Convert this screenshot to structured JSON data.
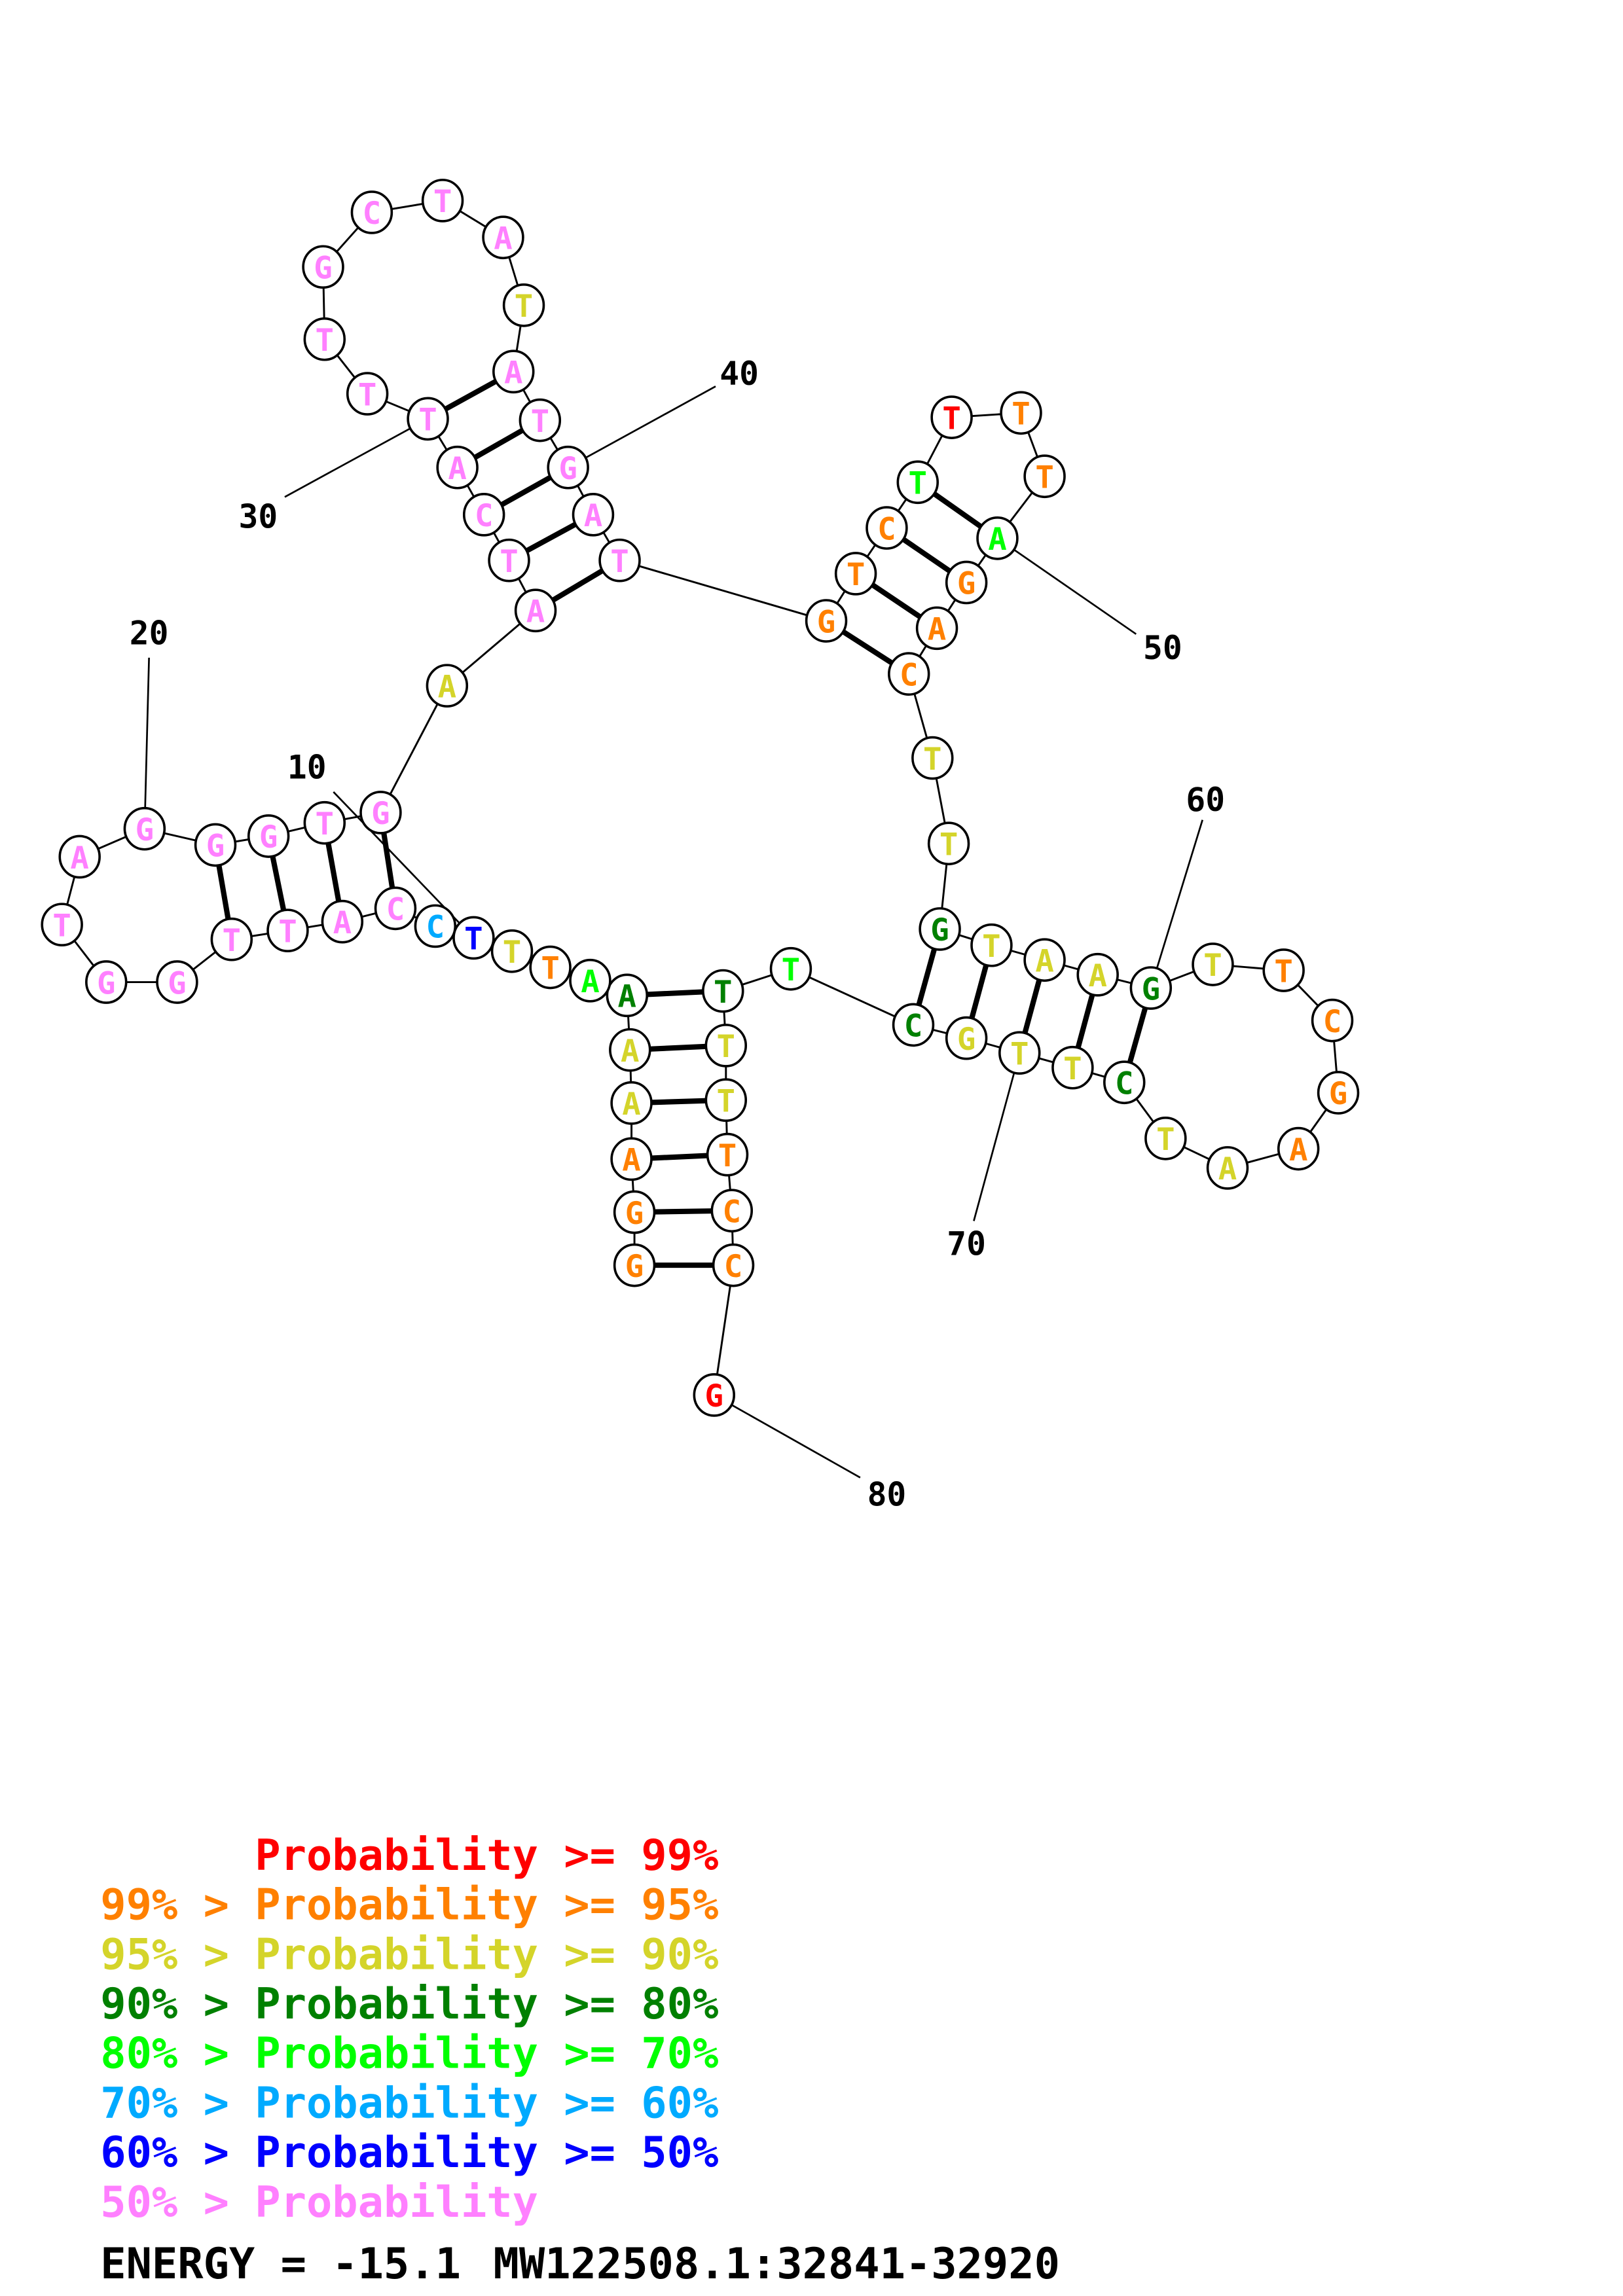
{
  "structure": {
    "nucleotides": [
      {
        "pos": 1,
        "base": "G",
        "c": 1
      },
      {
        "pos": 2,
        "base": "G",
        "c": 1
      },
      {
        "pos": 3,
        "base": "A",
        "c": 1
      },
      {
        "pos": 4,
        "base": "A",
        "c": 2
      },
      {
        "pos": 5,
        "base": "A",
        "c": 2
      },
      {
        "pos": 6,
        "base": "A",
        "c": 3
      },
      {
        "pos": 7,
        "base": "A",
        "c": 4
      },
      {
        "pos": 8,
        "base": "T",
        "c": 1
      },
      {
        "pos": 9,
        "base": "T",
        "c": 2
      },
      {
        "pos": 10,
        "base": "T",
        "c": 6
      },
      {
        "pos": 11,
        "base": "C",
        "c": 5
      },
      {
        "pos": 12,
        "base": "C",
        "c": 7
      },
      {
        "pos": 13,
        "base": "A",
        "c": 7
      },
      {
        "pos": 14,
        "base": "T",
        "c": 7
      },
      {
        "pos": 15,
        "base": "T",
        "c": 7
      },
      {
        "pos": 16,
        "base": "G",
        "c": 7
      },
      {
        "pos": 17,
        "base": "G",
        "c": 7
      },
      {
        "pos": 18,
        "base": "T",
        "c": 7
      },
      {
        "pos": 19,
        "base": "A",
        "c": 7
      },
      {
        "pos": 20,
        "base": "G",
        "c": 7
      },
      {
        "pos": 21,
        "base": "G",
        "c": 7
      },
      {
        "pos": 22,
        "base": "G",
        "c": 7
      },
      {
        "pos": 23,
        "base": "T",
        "c": 7
      },
      {
        "pos": 24,
        "base": "G",
        "c": 7
      },
      {
        "pos": 25,
        "base": "A",
        "c": 2
      },
      {
        "pos": 26,
        "base": "A",
        "c": 7
      },
      {
        "pos": 27,
        "base": "T",
        "c": 7
      },
      {
        "pos": 28,
        "base": "C",
        "c": 7
      },
      {
        "pos": 29,
        "base": "A",
        "c": 7
      },
      {
        "pos": 30,
        "base": "T",
        "c": 7
      },
      {
        "pos": 31,
        "base": "T",
        "c": 7
      },
      {
        "pos": 32,
        "base": "T",
        "c": 7
      },
      {
        "pos": 33,
        "base": "G",
        "c": 7
      },
      {
        "pos": 34,
        "base": "C",
        "c": 7
      },
      {
        "pos": 35,
        "base": "T",
        "c": 7
      },
      {
        "pos": 36,
        "base": "A",
        "c": 7
      },
      {
        "pos": 37,
        "base": "T",
        "c": 2
      },
      {
        "pos": 38,
        "base": "A",
        "c": 7
      },
      {
        "pos": 39,
        "base": "T",
        "c": 7
      },
      {
        "pos": 40,
        "base": "G",
        "c": 7
      },
      {
        "pos": 41,
        "base": "A",
        "c": 7
      },
      {
        "pos": 42,
        "base": "T",
        "c": 7
      },
      {
        "pos": 43,
        "base": "G",
        "c": 1
      },
      {
        "pos": 44,
        "base": "T",
        "c": 1
      },
      {
        "pos": 45,
        "base": "C",
        "c": 1
      },
      {
        "pos": 46,
        "base": "T",
        "c": 4
      },
      {
        "pos": 47,
        "base": "T",
        "c": 0
      },
      {
        "pos": 48,
        "base": "T",
        "c": 1
      },
      {
        "pos": 49,
        "base": "T",
        "c": 1
      },
      {
        "pos": 50,
        "base": "A",
        "c": 4
      },
      {
        "pos": 51,
        "base": "G",
        "c": 1
      },
      {
        "pos": 52,
        "base": "A",
        "c": 1
      },
      {
        "pos": 53,
        "base": "C",
        "c": 1
      },
      {
        "pos": 54,
        "base": "T",
        "c": 2
      },
      {
        "pos": 55,
        "base": "T",
        "c": 2
      },
      {
        "pos": 56,
        "base": "G",
        "c": 3
      },
      {
        "pos": 57,
        "base": "T",
        "c": 2
      },
      {
        "pos": 58,
        "base": "A",
        "c": 2
      },
      {
        "pos": 59,
        "base": "A",
        "c": 2
      },
      {
        "pos": 60,
        "base": "G",
        "c": 3
      },
      {
        "pos": 61,
        "base": "T",
        "c": 2
      },
      {
        "pos": 62,
        "base": "T",
        "c": 1
      },
      {
        "pos": 63,
        "base": "C",
        "c": 1
      },
      {
        "pos": 64,
        "base": "G",
        "c": 1
      },
      {
        "pos": 65,
        "base": "A",
        "c": 1
      },
      {
        "pos": 66,
        "base": "A",
        "c": 2
      },
      {
        "pos": 67,
        "base": "T",
        "c": 2
      },
      {
        "pos": 68,
        "base": "C",
        "c": 3
      },
      {
        "pos": 69,
        "base": "T",
        "c": 2
      },
      {
        "pos": 70,
        "base": "T",
        "c": 2
      },
      {
        "pos": 71,
        "base": "G",
        "c": 2
      },
      {
        "pos": 72,
        "base": "C",
        "c": 3
      },
      {
        "pos": 73,
        "base": "T",
        "c": 4
      },
      {
        "pos": 74,
        "base": "T",
        "c": 3
      },
      {
        "pos": 75,
        "base": "T",
        "c": 2
      },
      {
        "pos": 76,
        "base": "T",
        "c": 2
      },
      {
        "pos": 77,
        "base": "T",
        "c": 1
      },
      {
        "pos": 78,
        "base": "C",
        "c": 1
      },
      {
        "pos": 79,
        "base": "C",
        "c": 1
      },
      {
        "pos": 80,
        "base": "G",
        "c": 0
      }
    ],
    "pairs": [
      [
        1,
        79
      ],
      [
        2,
        78
      ],
      [
        3,
        77
      ],
      [
        4,
        76
      ],
      [
        5,
        75
      ],
      [
        6,
        74
      ],
      [
        12,
        24
      ],
      [
        13,
        23
      ],
      [
        14,
        22
      ],
      [
        15,
        21
      ],
      [
        26,
        42
      ],
      [
        27,
        41
      ],
      [
        28,
        40
      ],
      [
        29,
        39
      ],
      [
        30,
        38
      ],
      [
        43,
        53
      ],
      [
        44,
        52
      ],
      [
        45,
        51
      ],
      [
        46,
        50
      ],
      [
        56,
        72
      ],
      [
        57,
        71
      ],
      [
        58,
        70
      ],
      [
        59,
        69
      ],
      [
        60,
        68
      ]
    ],
    "position_labels": [
      "10",
      "20",
      "30",
      "40",
      "50",
      "60",
      "70",
      "80"
    ]
  },
  "legend": {
    "rows": [
      {
        "prefix": "      ",
        "text": "Probability >= 99%",
        "color": "#ff0000"
      },
      {
        "prefix": "99% > ",
        "text": "Probability >= 95%",
        "color": "#ff8000"
      },
      {
        "prefix": "95% > ",
        "text": "Probability >= 90%",
        "color": "#d4d42a"
      },
      {
        "prefix": "90% > ",
        "text": "Probability >= 80%",
        "color": "#008000"
      },
      {
        "prefix": "80% > ",
        "text": "Probability >= 70%",
        "color": "#00ff00"
      },
      {
        "prefix": "70% > ",
        "text": "Probability >= 60%",
        "color": "#00aaff"
      },
      {
        "prefix": "60% > ",
        "text": "Probability >= 50%",
        "color": "#0000ff"
      },
      {
        "prefix": "50% > ",
        "text": "Probability",
        "color": "#ff80ff"
      }
    ]
  },
  "footer": {
    "energy": "ENERGY = -15.1",
    "sequence_id": "MW122508.1:32841-32920"
  }
}
